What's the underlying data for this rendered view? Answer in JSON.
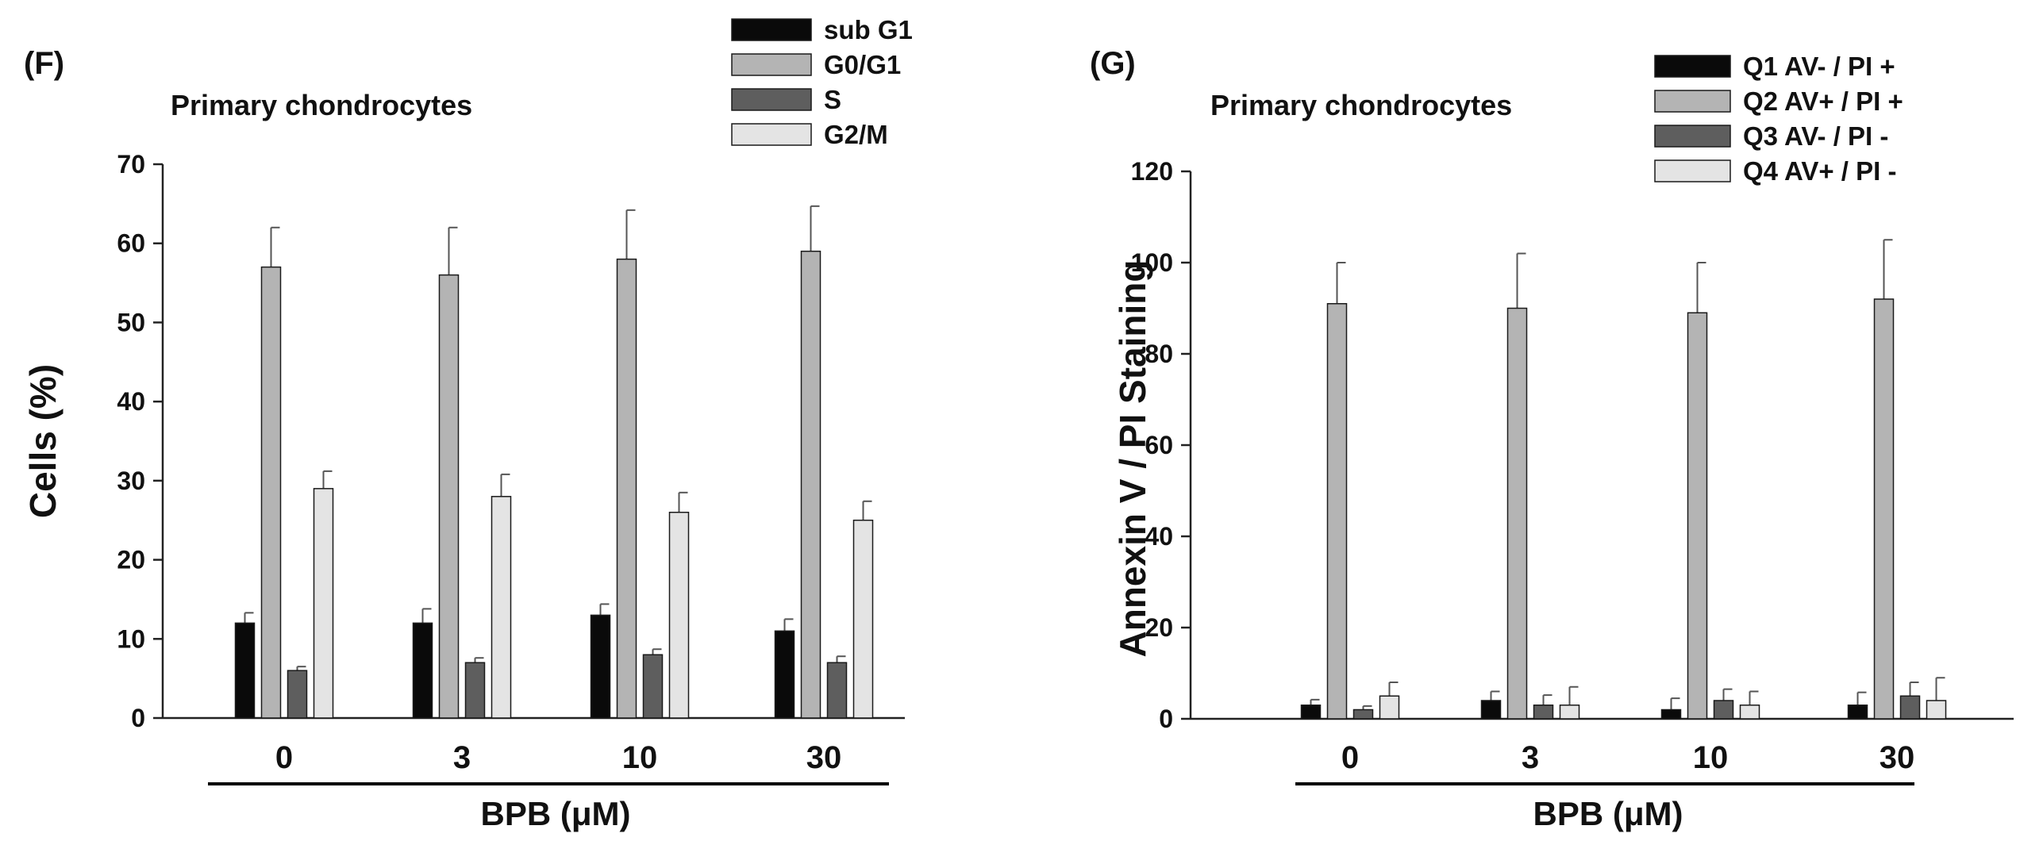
{
  "colors": {
    "axis": "#222222",
    "black_bar": "#0a0a0a",
    "light_gray_bar": "#b4b4b4",
    "dark_gray_bar": "#5e5e5e",
    "very_light_bar": "#e4e4e4",
    "error_bar": "#555555"
  },
  "chart_data": [
    {
      "type": "bar",
      "panel_label": "(F)",
      "title": "Primary chondrocytes",
      "xlabel": "BPB (μM)",
      "ylabel": "Cells (%)",
      "ylim": [
        0,
        70
      ],
      "yticks": [
        0,
        10,
        20,
        30,
        40,
        50,
        60,
        70
      ],
      "grid": false,
      "legend_position": "top-center",
      "categories": [
        "0",
        "3",
        "10",
        "30"
      ],
      "series": [
        {
          "name": "sub G1",
          "color": "#0a0a0a",
          "values": [
            12,
            12,
            13,
            11
          ],
          "errors": [
            1.3,
            1.8,
            1.4,
            1.5
          ]
        },
        {
          "name": "G0/G1",
          "color": "#b4b4b4",
          "values": [
            57,
            56,
            58,
            59
          ],
          "errors": [
            5,
            6,
            6.2,
            5.7
          ]
        },
        {
          "name": "S",
          "color": "#5e5e5e",
          "values": [
            6,
            7,
            8,
            7
          ],
          "errors": [
            0.5,
            0.6,
            0.7,
            0.8
          ]
        },
        {
          "name": "G2/M",
          "color": "#e4e4e4",
          "values": [
            29,
            28,
            26,
            25
          ],
          "errors": [
            2.2,
            2.8,
            2.5,
            2.4
          ]
        }
      ]
    },
    {
      "type": "bar",
      "panel_label": "(G)",
      "title": "Primary chondrocytes",
      "xlabel": "BPB (μM)",
      "ylabel": "Annexin V / PI Staining",
      "ylim": [
        0,
        120
      ],
      "yticks": [
        0,
        20,
        40,
        60,
        80,
        100,
        120
      ],
      "grid": false,
      "legend_position": "top-right",
      "categories": [
        "0",
        "3",
        "10",
        "30"
      ],
      "series": [
        {
          "name": "Q1 AV- / PI +",
          "color": "#0a0a0a",
          "values": [
            3,
            4,
            2,
            3
          ],
          "errors": [
            1.2,
            2,
            2.5,
            2.8
          ]
        },
        {
          "name": "Q2 AV+ / PI +",
          "color": "#b4b4b4",
          "values": [
            91,
            90,
            89,
            92
          ],
          "errors": [
            9,
            12,
            11,
            13
          ]
        },
        {
          "name": "Q3 AV- / PI -",
          "color": "#5e5e5e",
          "values": [
            2,
            3,
            4,
            5
          ],
          "errors": [
            0.8,
            2.2,
            2.5,
            3
          ]
        },
        {
          "name": "Q4 AV+ / PI -",
          "color": "#e4e4e4",
          "values": [
            5,
            3,
            3,
            4
          ],
          "errors": [
            3,
            4,
            3,
            5
          ]
        }
      ]
    }
  ]
}
